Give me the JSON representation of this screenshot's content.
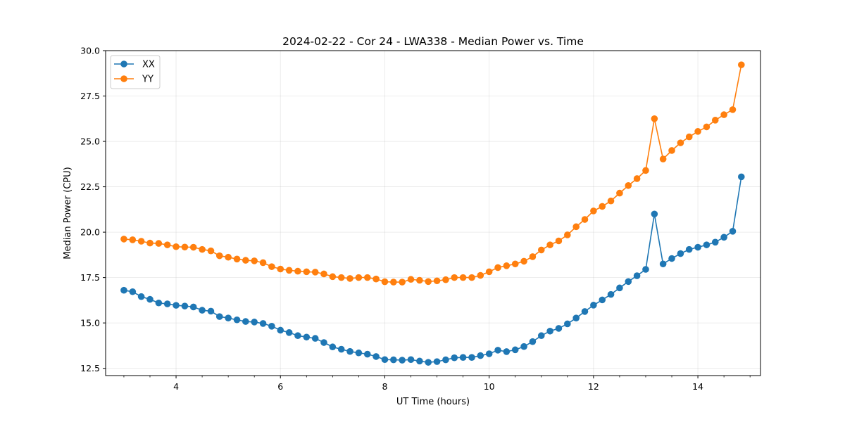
{
  "chart_data": {
    "type": "line",
    "title": "2024-02-22 - Cor 24 - LWA338 - Median Power vs. Time",
    "xlabel": "UT Time (hours)",
    "ylabel": "Median Power (CPU)",
    "xlim": [
      2.65,
      15.2
    ],
    "ylim": [
      12.1,
      30.0
    ],
    "xticks": [
      4,
      6,
      8,
      10,
      12,
      14
    ],
    "xtick_labels": [
      "4",
      "6",
      "8",
      "10",
      "12",
      "14"
    ],
    "yticks": [
      12.5,
      15.0,
      17.5,
      20.0,
      22.5,
      25.0,
      27.5,
      30.0
    ],
    "ytick_labels": [
      "12.5",
      "15.0",
      "17.5",
      "20.0",
      "22.5",
      "25.0",
      "27.5",
      "30.0"
    ],
    "grid": true,
    "legend": "top-left",
    "x": [
      3.0,
      3.167,
      3.333,
      3.5,
      3.667,
      3.833,
      4.0,
      4.167,
      4.333,
      4.5,
      4.667,
      4.833,
      5.0,
      5.167,
      5.333,
      5.5,
      5.667,
      5.833,
      6.0,
      6.167,
      6.333,
      6.5,
      6.667,
      6.833,
      7.0,
      7.167,
      7.333,
      7.5,
      7.667,
      7.833,
      8.0,
      8.167,
      8.333,
      8.5,
      8.667,
      8.833,
      9.0,
      9.167,
      9.333,
      9.5,
      9.667,
      9.833,
      10.0,
      10.167,
      10.333,
      10.5,
      10.667,
      10.833,
      11.0,
      11.167,
      11.333,
      11.5,
      11.667,
      11.833,
      12.0,
      12.167,
      12.333,
      12.5,
      12.667,
      12.833,
      13.0,
      13.167,
      13.333,
      13.5,
      13.667,
      13.833,
      14.0,
      14.167,
      14.333,
      14.5,
      14.667,
      14.833
    ],
    "series": [
      {
        "name": "XX",
        "color": "#1f77b4",
        "values": [
          16.8,
          16.72,
          16.45,
          16.3,
          16.1,
          16.05,
          15.97,
          15.93,
          15.88,
          15.7,
          15.65,
          15.35,
          15.27,
          15.17,
          15.08,
          15.05,
          14.97,
          14.82,
          14.6,
          14.47,
          14.3,
          14.22,
          14.15,
          13.92,
          13.68,
          13.55,
          13.43,
          13.35,
          13.28,
          13.15,
          12.98,
          12.97,
          12.95,
          12.98,
          12.9,
          12.83,
          12.87,
          12.97,
          13.08,
          13.1,
          13.1,
          13.2,
          13.3,
          13.5,
          13.42,
          13.52,
          13.7,
          13.97,
          14.3,
          14.55,
          14.7,
          14.95,
          15.27,
          15.63,
          15.98,
          16.27,
          16.57,
          16.93,
          17.28,
          17.6,
          17.95,
          21.0,
          18.25,
          18.55,
          18.82,
          19.05,
          19.17,
          19.3,
          19.45,
          19.72,
          20.05,
          23.05
        ]
      },
      {
        "name": "YY",
        "color": "#ff7f0e",
        "values": [
          19.62,
          19.58,
          19.5,
          19.4,
          19.38,
          19.3,
          19.2,
          19.18,
          19.17,
          19.05,
          18.97,
          18.7,
          18.62,
          18.52,
          18.45,
          18.42,
          18.32,
          18.1,
          17.97,
          17.9,
          17.85,
          17.82,
          17.8,
          17.7,
          17.55,
          17.5,
          17.45,
          17.5,
          17.5,
          17.42,
          17.27,
          17.25,
          17.25,
          17.4,
          17.35,
          17.28,
          17.32,
          17.38,
          17.5,
          17.5,
          17.5,
          17.62,
          17.82,
          18.05,
          18.15,
          18.25,
          18.4,
          18.65,
          19.02,
          19.3,
          19.52,
          19.85,
          20.3,
          20.7,
          21.17,
          21.42,
          21.72,
          22.15,
          22.57,
          22.95,
          23.4,
          26.25,
          24.03,
          24.5,
          24.92,
          25.25,
          25.55,
          25.8,
          26.17,
          26.47,
          26.75,
          29.22
        ]
      }
    ]
  }
}
